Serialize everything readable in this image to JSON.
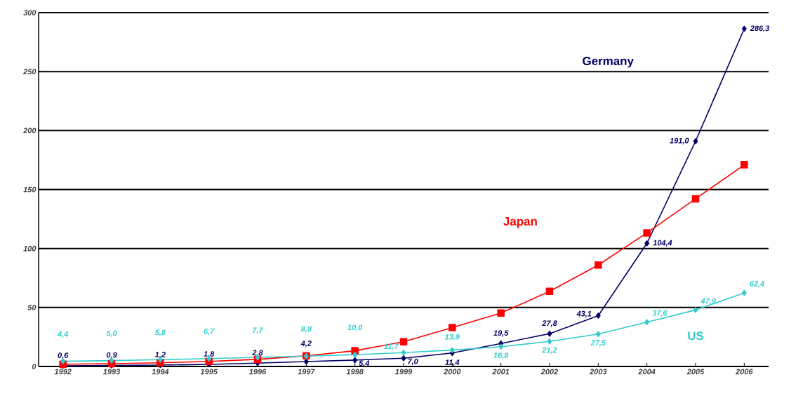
{
  "chart_data": {
    "type": "line",
    "categories": [
      "1992",
      "1993",
      "1994",
      "1995",
      "1996",
      "1997",
      "1998",
      "1999",
      "2000",
      "2001",
      "2002",
      "2003",
      "2004",
      "2005",
      "2006"
    ],
    "ylim": [
      0,
      300
    ],
    "yticks": [
      0,
      50,
      100,
      150,
      200,
      250,
      300
    ],
    "grid": "y",
    "legend": false,
    "series": [
      {
        "name": "Germany",
        "color": "#000066",
        "marker": "diamond",
        "values": [
          0.6,
          0.9,
          1.2,
          1.8,
          2.8,
          4.2,
          5.4,
          7.0,
          11.4,
          19.5,
          27.8,
          43.1,
          104.4,
          191.0,
          286.3
        ],
        "value_labels": [
          "0,6",
          "0,9",
          "1,2",
          "1,8",
          "2,8",
          "4,2",
          "5,4",
          "7,0",
          "11,4",
          "19,5",
          "27,8",
          "43,1",
          "104,4",
          "191,0",
          "286,3"
        ]
      },
      {
        "name": "Japan",
        "color": "#ff0000",
        "marker": "square",
        "values": [
          1.9,
          2.4,
          3.1,
          4.3,
          6.0,
          9.1,
          13.3,
          20.9,
          33.0,
          45.3,
          63.7,
          86.0,
          113.2,
          142.2,
          170.9
        ]
      },
      {
        "name": "US",
        "color": "#33cccc",
        "marker": "diamond",
        "values": [
          4.4,
          5.0,
          5.8,
          6.7,
          7.7,
          8.8,
          10.0,
          11.7,
          13.9,
          16.8,
          21.2,
          27.5,
          37.6,
          47.9,
          62.4
        ],
        "value_labels": [
          "4,4",
          "5,0",
          "5,8",
          "6,7",
          "7,7",
          "8,8",
          "10,0",
          "11,7",
          "13,9",
          "16,8",
          "21,2",
          "27,5",
          "37,6",
          "47,9",
          "62,4"
        ]
      }
    ]
  }
}
